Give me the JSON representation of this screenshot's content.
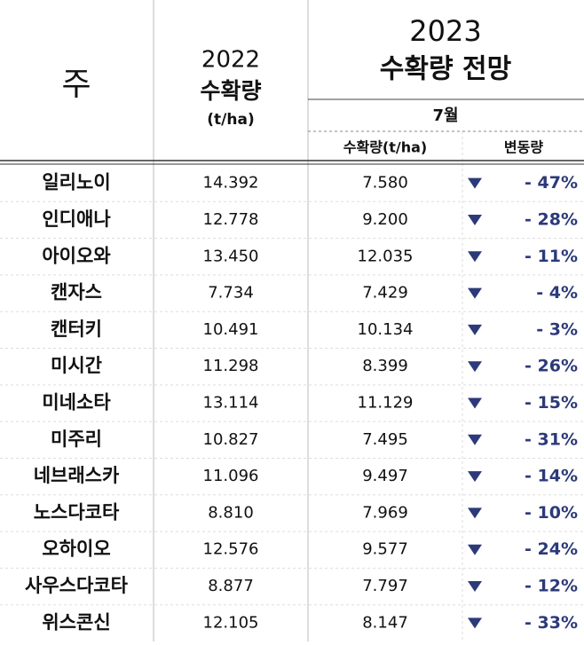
{
  "header": {
    "state": "주",
    "year2022": "2022",
    "yield2022": "수확량",
    "unit2022": "(t/ha)",
    "year2023": "2023",
    "outlook": "수확량 전망",
    "month": "7월",
    "yield2023": "수확량(t/ha)",
    "change": "변동량"
  },
  "table": {
    "rows": [
      [
        "일리노이",
        "14.392",
        "7.580",
        "- 47%"
      ],
      [
        "인디애나",
        "12.778",
        "9.200",
        "- 28%"
      ],
      [
        "아이오와",
        "13.450",
        "12.035",
        "- 11%"
      ],
      [
        "캔자스",
        "7.734",
        "7.429",
        "- 4%"
      ],
      [
        "캔터키",
        "10.491",
        "10.134",
        "- 3%"
      ],
      [
        "미시간",
        "11.298",
        "8.399",
        "- 26%"
      ],
      [
        "미네소타",
        "13.114",
        "11.129",
        "- 15%"
      ],
      [
        "미주리",
        "10.827",
        "7.495",
        "- 31%"
      ],
      [
        "네브래스카",
        "11.096",
        "9.497",
        "- 14%"
      ],
      [
        "노스다코타",
        "8.810",
        "7.969",
        "- 10%"
      ],
      [
        "오하이오",
        "12.576",
        "9.577",
        "- 24%"
      ],
      [
        "사우스다코타",
        "8.877",
        "7.797",
        "- 12%"
      ],
      [
        "위스콘신",
        "12.105",
        "8.147",
        "- 33%"
      ]
    ]
  }
}
